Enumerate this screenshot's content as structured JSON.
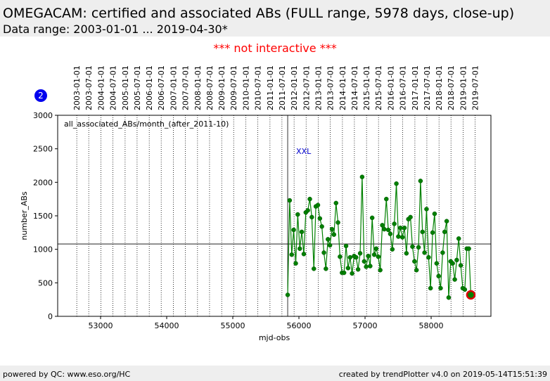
{
  "header": {
    "title": "OMEGACAM: certified and associated ABs (FULL range, 5978 days, close-up)",
    "subtitle": "Data range: 2003-01-01 ... 2019-04-30*"
  },
  "notice": "*** not interactive ***",
  "badge": "2",
  "chart_data": {
    "type": "line",
    "xlabel": "mjd-obs",
    "ylabel": "number_ABs",
    "plot_label": "all_associated_ABs/month_(after_2011-10)",
    "annotation": "XXL",
    "color": "#008000",
    "xlim": [
      52351,
      58904
    ],
    "ylim": [
      0,
      3000
    ],
    "xticks": [
      53000,
      54000,
      55000,
      56000,
      57000,
      58000
    ],
    "yticks": [
      0,
      500,
      1000,
      1500,
      2000,
      2500,
      3000
    ],
    "hline": 1080,
    "vline": 55830,
    "highlight_last": true,
    "date_ticks": [
      {
        "value": 52640,
        "label": "2003-01-01"
      },
      {
        "value": 52821,
        "label": "2003-07-01"
      },
      {
        "value": 53005,
        "label": "2004-01-01"
      },
      {
        "value": 53187,
        "label": "2004-07-01"
      },
      {
        "value": 53371,
        "label": "2005-01-01"
      },
      {
        "value": 53552,
        "label": "2005-07-01"
      },
      {
        "value": 53736,
        "label": "2006-01-01"
      },
      {
        "value": 53917,
        "label": "2006-07-01"
      },
      {
        "value": 54101,
        "label": "2007-01-01"
      },
      {
        "value": 54282,
        "label": "2007-07-01"
      },
      {
        "value": 54466,
        "label": "2008-01-01"
      },
      {
        "value": 54648,
        "label": "2008-07-01"
      },
      {
        "value": 54832,
        "label": "2009-01-01"
      },
      {
        "value": 55013,
        "label": "2009-07-01"
      },
      {
        "value": 55197,
        "label": "2010-01-01"
      },
      {
        "value": 55378,
        "label": "2010-07-01"
      },
      {
        "value": 55562,
        "label": "2011-01-01"
      },
      {
        "value": 55743,
        "label": "2011-07-01"
      },
      {
        "value": 55927,
        "label": "2012-01-01"
      },
      {
        "value": 56109,
        "label": "2012-07-01"
      },
      {
        "value": 56293,
        "label": "2013-01-01"
      },
      {
        "value": 56474,
        "label": "2013-07-01"
      },
      {
        "value": 56658,
        "label": "2014-01-01"
      },
      {
        "value": 56839,
        "label": "2014-07-01"
      },
      {
        "value": 57023,
        "label": "2015-01-01"
      },
      {
        "value": 57204,
        "label": "2015-07-01"
      },
      {
        "value": 57388,
        "label": "2016-01-01"
      },
      {
        "value": 57570,
        "label": "2016-07-01"
      },
      {
        "value": 57754,
        "label": "2017-01-01"
      },
      {
        "value": 57935,
        "label": "2017-07-01"
      },
      {
        "value": 58119,
        "label": "2018-01-01"
      },
      {
        "value": 58300,
        "label": "2018-07-01"
      },
      {
        "value": 58484,
        "label": "2019-01-01"
      },
      {
        "value": 58665,
        "label": "2019-07-01"
      }
    ],
    "x": [
      55830,
      55860,
      55891,
      55921,
      55952,
      55982,
      56013,
      56043,
      56074,
      56104,
      56134,
      56165,
      56195,
      56226,
      56256,
      56287,
      56317,
      56347,
      56378,
      56408,
      56439,
      56469,
      56500,
      56530,
      56561,
      56591,
      56621,
      56652,
      56682,
      56713,
      56743,
      56774,
      56804,
      56835,
      56865,
      56895,
      56926,
      56956,
      56987,
      57017,
      57048,
      57078,
      57108,
      57139,
      57169,
      57200,
      57230,
      57261,
      57291,
      57322,
      57352,
      57382,
      57413,
      57443,
      57474,
      57504,
      57535,
      57565,
      57596,
      57626,
      57656,
      57687,
      57717,
      57748,
      57778,
      57809,
      57839,
      57869,
      57900,
      57930,
      57961,
      57991,
      58022,
      58052,
      58083,
      58113,
      58143,
      58174,
      58204,
      58235,
      58265,
      58296,
      58326,
      58357,
      58387,
      58417,
      58448,
      58478,
      58509,
      58539,
      58570,
      58600
    ],
    "values": [
      320,
      1730,
      920,
      1290,
      790,
      1520,
      1010,
      1260,
      930,
      1550,
      1580,
      1750,
      1480,
      710,
      1640,
      1660,
      1460,
      1340,
      950,
      710,
      1150,
      1060,
      1300,
      1220,
      1690,
      1400,
      890,
      650,
      650,
      1050,
      720,
      880,
      640,
      900,
      880,
      700,
      940,
      2080,
      820,
      740,
      900,
      750,
      1470,
      920,
      1010,
      890,
      690,
      1360,
      1300,
      1750,
      1290,
      1230,
      1000,
      1380,
      1980,
      1190,
      1320,
      1180,
      1320,
      940,
      1450,
      1480,
      1040,
      820,
      690,
      1030,
      2020,
      1260,
      950,
      1600,
      880,
      420,
      1250,
      1530,
      790,
      600,
      420,
      950,
      1260,
      1420,
      280,
      820,
      790,
      550,
      840,
      1160,
      760,
      420,
      400,
      1010,
      1010,
      320
    ]
  },
  "footer": {
    "left": "powered by QC: www.eso.org/HC",
    "right": "created by trendPlotter v4.0 on 2019-05-14T15:51:39"
  }
}
